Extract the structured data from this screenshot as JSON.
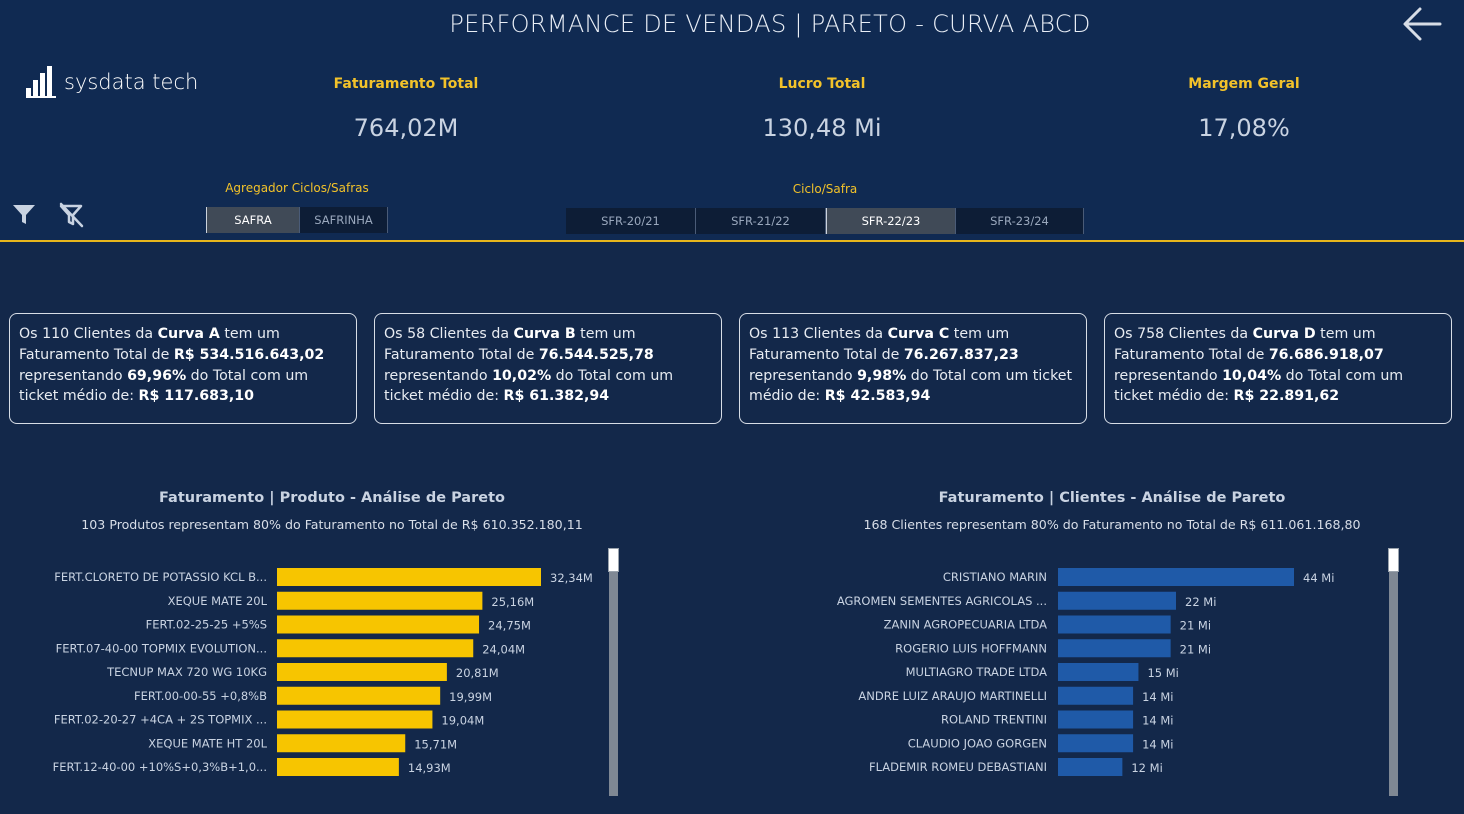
{
  "header": {
    "title": "PERFORMANCE DE VENDAS | PARETO - CURVA ABCD",
    "logo_text": "sysdata tech"
  },
  "kpis": [
    {
      "label": "Faturamento Total",
      "value": "764,02M"
    },
    {
      "label": "Lucro Total",
      "value": "130,48 Mi"
    },
    {
      "label": "Margem Geral",
      "value": "17,08%"
    }
  ],
  "filters": {
    "agregador_label": "Agregador Ciclos/Safras",
    "agregador_options": [
      "SAFRA",
      "SAFRINHA"
    ],
    "agregador_selected": "SAFRA",
    "ciclo_label": "Ciclo/Safra",
    "ciclo_options": [
      "SFR-20/21",
      "SFR-21/22",
      "SFR-22/23",
      "SFR-23/24"
    ],
    "ciclo_selected": "SFR-22/23"
  },
  "cards": [
    {
      "p1": "Os 110 Clientes da ",
      "curve": "Curva A",
      "p2": " tem um Faturamento Total de ",
      "total": "R$ 534.516.643,02",
      "p3": " representando ",
      "pct": "69,96%",
      "p4": " do Total com um ticket médio de: ",
      "ticket": "R$ 117.683,10"
    },
    {
      "p1": "Os 58 Clientes da ",
      "curve": "Curva B",
      "p2": " tem um Faturamento Total de ",
      "total": "76.544.525,78",
      "p3": " representando ",
      "pct": "10,02%",
      "p4": " do Total com um ticket médio de: ",
      "ticket": "R$ 61.382,94"
    },
    {
      "p1": "Os 113 Clientes da ",
      "curve": "Curva C",
      "p2": " tem um Faturamento Total de ",
      "total": "76.267.837,23",
      "p3": " representando ",
      "pct": "9,98%",
      "p4": " do Total com um ticket médio de: ",
      "ticket": "R$ 42.583,94"
    },
    {
      "p1": "Os 758 Clientes da ",
      "curve": "Curva D",
      "p2": " tem um Faturamento Total de ",
      "total": "76.686.918,07",
      "p3": " representando ",
      "pct": "10,04%",
      "p4": " do Total com um ticket médio de: ",
      "ticket": "R$ 22.891,62"
    }
  ],
  "chart_data": [
    {
      "type": "bar",
      "orientation": "horizontal",
      "title": "Faturamento | Produto - Análise de Pareto",
      "subtitle": "103 Produtos representam 80% do Faturamento no Total de R$ 610.352.180,11",
      "color": "#f7c500",
      "categories": [
        "FERT.CLORETO DE POTASSIO KCL B...",
        "XEQUE MATE 20L",
        "FERT.02-25-25 +5%S",
        "FERT.07-40-00 TOPMIX EVOLUTION...",
        "TECNUP MAX 720 WG 10KG",
        "FERT.00-00-55 +0,8%B",
        "FERT.02-20-27 +4CA + 2S TOPMIX ...",
        "XEQUE MATE HT 20L",
        "FERT.12-40-00 +10%S+0,3%B+1,0..."
      ],
      "values": [
        32.34,
        25.16,
        24.75,
        24.04,
        20.81,
        19.99,
        19.04,
        15.71,
        14.93
      ],
      "labels": [
        "32,34M",
        "25,16M",
        "24,75M",
        "24,04M",
        "20,81M",
        "19,99M",
        "19,04M",
        "15,71M",
        "14,93M"
      ],
      "unit": "M"
    },
    {
      "type": "bar",
      "orientation": "horizontal",
      "title": "Faturamento | Clientes - Análise de Pareto",
      "subtitle": "168 Clientes representam 80% do Faturamento no Total de R$ 611.061.168,80",
      "color": "#1f5aa8",
      "categories": [
        "CRISTIANO MARIN",
        "AGROMEN SEMENTES AGRICOLAS ...",
        "ZANIN AGROPECUARIA LTDA",
        "ROGERIO LUIS HOFFMANN",
        "MULTIAGRO TRADE LTDA",
        "ANDRE LUIZ ARAUJO MARTINELLI",
        "ROLAND TRENTINI",
        "CLAUDIO JOAO GORGEN",
        "FLADEMIR ROMEU DEBASTIANI"
      ],
      "values": [
        44,
        22,
        21,
        21,
        15,
        14,
        14,
        14,
        12
      ],
      "labels": [
        "44 Mi",
        "22 Mi",
        "21 Mi",
        "21 Mi",
        "15 Mi",
        "14 Mi",
        "14 Mi",
        "14 Mi",
        "12 Mi"
      ],
      "unit": "Mi"
    }
  ]
}
